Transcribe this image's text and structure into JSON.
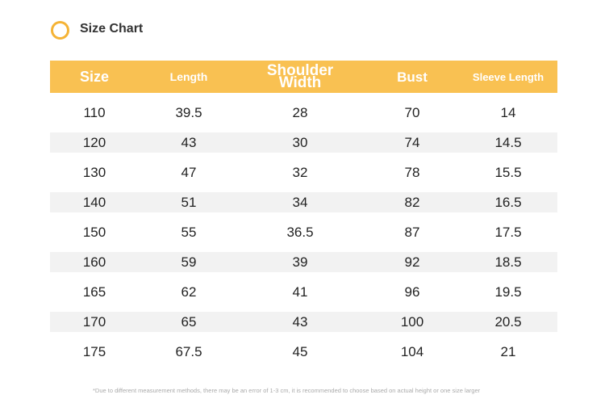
{
  "header": {
    "title": "Size Chart"
  },
  "table": {
    "columns": [
      "Size",
      "Length",
      "Shoulder Width",
      "Bust",
      "Sleeve Length"
    ],
    "rows": [
      [
        110,
        39.5,
        28,
        70,
        14
      ],
      [
        120,
        43,
        30,
        74,
        14.5
      ],
      [
        130,
        47,
        32,
        78,
        15.5
      ],
      [
        140,
        51,
        34,
        82,
        16.5
      ],
      [
        150,
        55,
        36.5,
        87,
        17.5
      ],
      [
        160,
        59,
        39,
        92,
        18.5
      ],
      [
        165,
        62,
        41,
        96,
        19.5
      ],
      [
        170,
        65,
        43,
        100,
        20.5
      ],
      [
        175,
        67.5,
        45,
        104,
        21
      ]
    ]
  },
  "footnote": "*Due to different measurement methods, there may be an error of 1-3 cm, it is recommended to choose based on actual height or one size larger"
}
